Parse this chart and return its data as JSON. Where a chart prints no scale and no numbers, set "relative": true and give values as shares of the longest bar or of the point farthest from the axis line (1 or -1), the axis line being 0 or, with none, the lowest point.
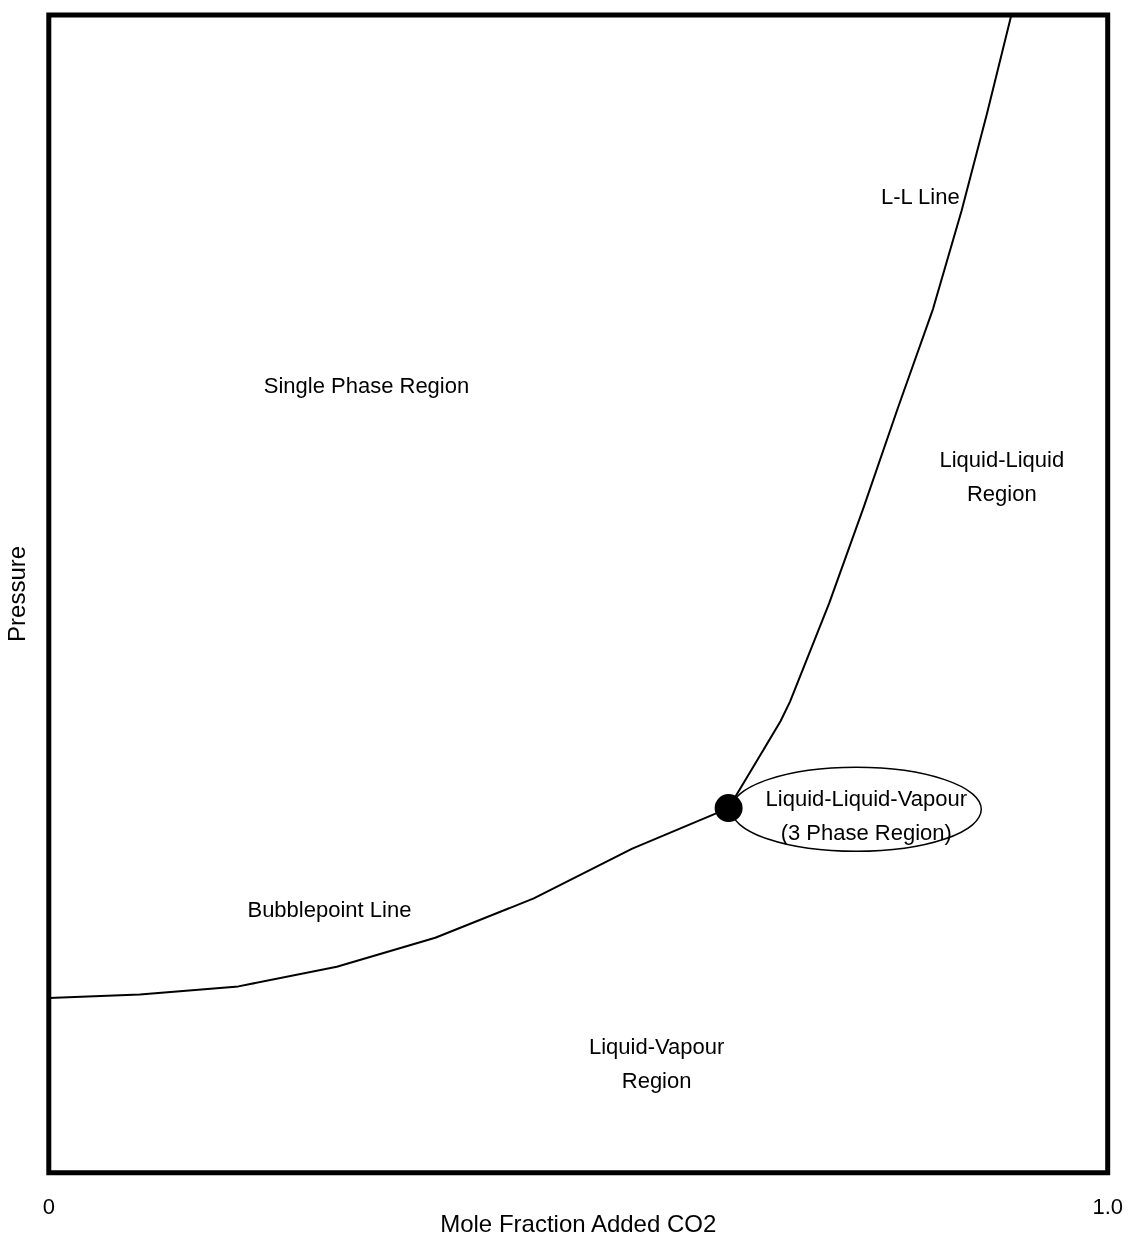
{
  "chart_data": {
    "type": "line",
    "relative": true,
    "xlabel": "Mole Fraction Added CO2",
    "ylabel": "Pressure",
    "xlim": [
      0,
      1
    ],
    "xticks": [
      0,
      {
        "value": 1,
        "label": "1.0"
      }
    ],
    "grid": false,
    "legend": false,
    "series": [
      {
        "type": "line",
        "color": "#000000",
        "marker": "none",
        "x": [
          0,
          0.086,
          0.179,
          0.272,
          0.365,
          0.458,
          0.551,
          0.642,
          0.691,
          0.7,
          0.737,
          0.77,
          0.802,
          0.835,
          0.862,
          0.886,
          0.909
        ],
        "values": [
          0.151,
          0.154,
          0.161,
          0.178,
          0.203,
          0.237,
          0.28,
          0.315,
          0.39,
          0.407,
          0.492,
          0.576,
          0.661,
          0.746,
          0.831,
          0.915,
          1.0
        ]
      },
      {
        "type": "scatter",
        "color": "#000000",
        "marker": "circle",
        "x": [
          0.642
        ],
        "values": [
          0.315
        ]
      }
    ],
    "annotations": [
      "L-L Line",
      "Single Phase Region",
      "Liquid-Liquid\nRegion",
      "Liquid-Liquid-Vapour\n(3 Phase Region)",
      "Bubblepoint Line",
      "Liquid-Vapour\nRegion"
    ]
  }
}
